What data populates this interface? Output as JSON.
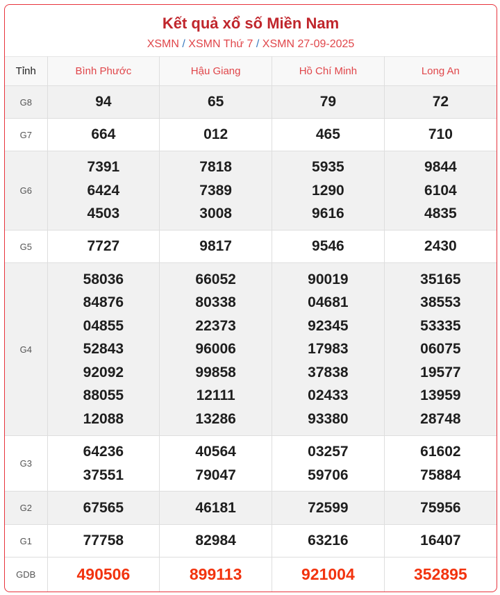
{
  "title": "Kết quả xổ số Miền Nam",
  "breadcrumb": [
    "XSMN",
    "XSMN Thứ 7",
    "XSMN 27-09-2025"
  ],
  "breadcrumb_separator": "/",
  "colors": {
    "accent": "#c0262c",
    "link": "#e0464a",
    "special": "#f2330e"
  },
  "table": {
    "corner_label": "Tỉnh",
    "provinces": [
      "Bình Phước",
      "Hậu Giang",
      "Hồ Chí Minh",
      "Long An"
    ],
    "prizes": [
      {
        "label": "G8",
        "values": [
          [
            "94"
          ],
          [
            "65"
          ],
          [
            "79"
          ],
          [
            "72"
          ]
        ]
      },
      {
        "label": "G7",
        "values": [
          [
            "664"
          ],
          [
            "012"
          ],
          [
            "465"
          ],
          [
            "710"
          ]
        ]
      },
      {
        "label": "G6",
        "values": [
          [
            "7391",
            "6424",
            "4503"
          ],
          [
            "7818",
            "7389",
            "3008"
          ],
          [
            "5935",
            "1290",
            "9616"
          ],
          [
            "9844",
            "6104",
            "4835"
          ]
        ]
      },
      {
        "label": "G5",
        "values": [
          [
            "7727"
          ],
          [
            "9817"
          ],
          [
            "9546"
          ],
          [
            "2430"
          ]
        ]
      },
      {
        "label": "G4",
        "values": [
          [
            "58036",
            "84876",
            "04855",
            "52843",
            "92092",
            "88055",
            "12088"
          ],
          [
            "66052",
            "80338",
            "22373",
            "96006",
            "99858",
            "12111",
            "13286"
          ],
          [
            "90019",
            "04681",
            "92345",
            "17983",
            "37838",
            "02433",
            "93380"
          ],
          [
            "35165",
            "38553",
            "53335",
            "06075",
            "19577",
            "13959",
            "28748"
          ]
        ]
      },
      {
        "label": "G3",
        "values": [
          [
            "64236",
            "37551"
          ],
          [
            "40564",
            "79047"
          ],
          [
            "03257",
            "59706"
          ],
          [
            "61602",
            "75884"
          ]
        ]
      },
      {
        "label": "G2",
        "values": [
          [
            "67565"
          ],
          [
            "46181"
          ],
          [
            "72599"
          ],
          [
            "75956"
          ]
        ]
      },
      {
        "label": "G1",
        "values": [
          [
            "77758"
          ],
          [
            "82984"
          ],
          [
            "63216"
          ],
          [
            "16407"
          ]
        ]
      },
      {
        "label": "GDB",
        "values": [
          [
            "490506"
          ],
          [
            "899113"
          ],
          [
            "921004"
          ],
          [
            "352895"
          ]
        ]
      }
    ]
  }
}
